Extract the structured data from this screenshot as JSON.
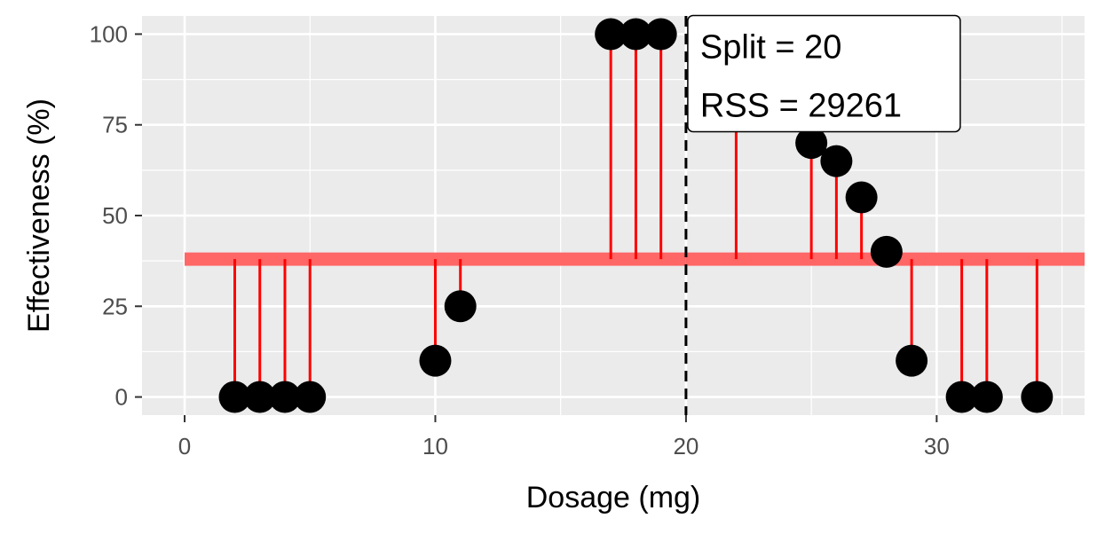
{
  "chart_data": {
    "type": "scatter",
    "xlabel": "Dosage (mg)",
    "ylabel": "Effectiveness (%)",
    "xlim": [
      -1.7,
      35.9
    ],
    "ylim": [
      -5,
      105
    ],
    "x_ticks": [
      0,
      10,
      20,
      30
    ],
    "x_minor_ticks": [
      5,
      15,
      25,
      35
    ],
    "y_ticks": [
      0,
      25,
      50,
      75,
      100
    ],
    "y_minor_ticks": [
      12.5,
      37.5,
      62.5,
      87.5
    ],
    "x_tick_labels": [
      "0",
      "10",
      "20",
      "30"
    ],
    "y_tick_labels": [
      "0",
      "25",
      "50",
      "75",
      "100"
    ],
    "grid": true,
    "points": [
      {
        "x": 2,
        "y": 0
      },
      {
        "x": 3,
        "y": 0
      },
      {
        "x": 4,
        "y": 0
      },
      {
        "x": 5,
        "y": 0
      },
      {
        "x": 10,
        "y": 10
      },
      {
        "x": 11,
        "y": 25
      },
      {
        "x": 17,
        "y": 100
      },
      {
        "x": 18,
        "y": 100
      },
      {
        "x": 19,
        "y": 100
      },
      {
        "x": 22,
        "y": 100
      },
      {
        "x": 25,
        "y": 70
      },
      {
        "x": 26,
        "y": 65
      },
      {
        "x": 27,
        "y": 55
      },
      {
        "x": 28,
        "y": 40
      },
      {
        "x": 29,
        "y": 10
      },
      {
        "x": 31,
        "y": 0
      },
      {
        "x": 32,
        "y": 0
      },
      {
        "x": 34,
        "y": 0
      }
    ],
    "split": {
      "x": 20
    },
    "fit_segments": [
      {
        "x_start": 0,
        "x_end": 20,
        "y": 38
      },
      {
        "x_start": 20,
        "x_end": 35.9,
        "y": 38
      }
    ],
    "annotation": {
      "x": 20,
      "y": 100,
      "lines": [
        "Split = 20",
        "RSS = 29261"
      ]
    },
    "colors": {
      "panel_bg": "#ebebeb",
      "grid": "#ffffff",
      "point": "#000000",
      "residual": "#ff0000",
      "fit_line": "#ff6666",
      "split_line": "#000000"
    }
  }
}
